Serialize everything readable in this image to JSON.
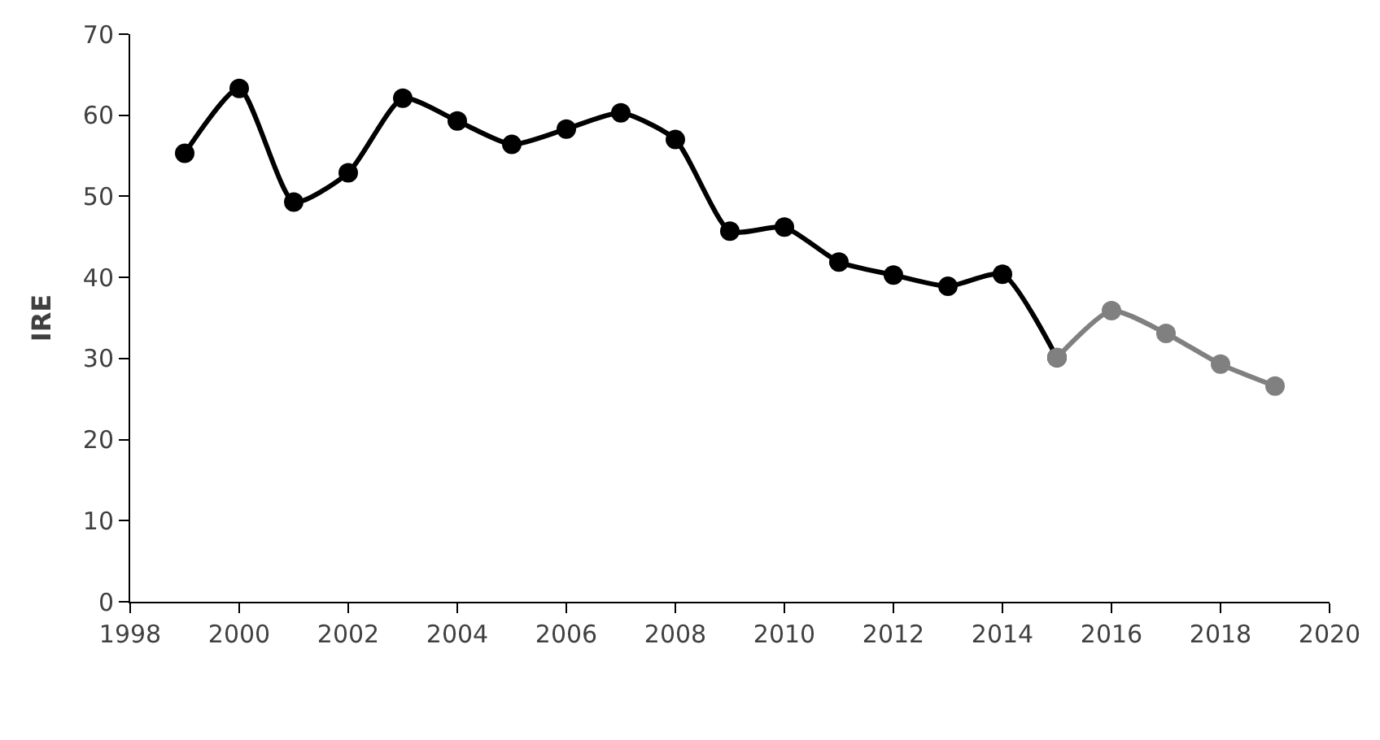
{
  "chart_data": {
    "type": "line",
    "ylabel": "IRE",
    "xlim": [
      1998,
      2020
    ],
    "xticks": [
      1998,
      2000,
      2002,
      2004,
      2006,
      2008,
      2010,
      2012,
      2014,
      2016,
      2018,
      2020
    ],
    "ylim": [
      0,
      70
    ],
    "yticks": [
      0,
      10,
      20,
      30,
      40,
      50,
      60,
      70
    ],
    "marker": "circle",
    "line_style": "solid",
    "series": [
      {
        "color": "#000000",
        "x": [
          1999,
          2000,
          2001,
          2002,
          2003,
          2004,
          2005,
          2006,
          2007,
          2008,
          2009,
          2010,
          2011,
          2012,
          2013,
          2014,
          2015
        ],
        "values": [
          55.3,
          63.3,
          49.3,
          52.9,
          62.1,
          59.3,
          56.4,
          58.3,
          60.3,
          57.0,
          45.7,
          46.2,
          41.9,
          40.3,
          38.9,
          40.4,
          30.1
        ]
      },
      {
        "color": "#808080",
        "x": [
          2015,
          2016,
          2017,
          2018,
          2019
        ],
        "values": [
          30.1,
          35.9,
          33.1,
          29.3,
          26.6
        ]
      }
    ]
  }
}
